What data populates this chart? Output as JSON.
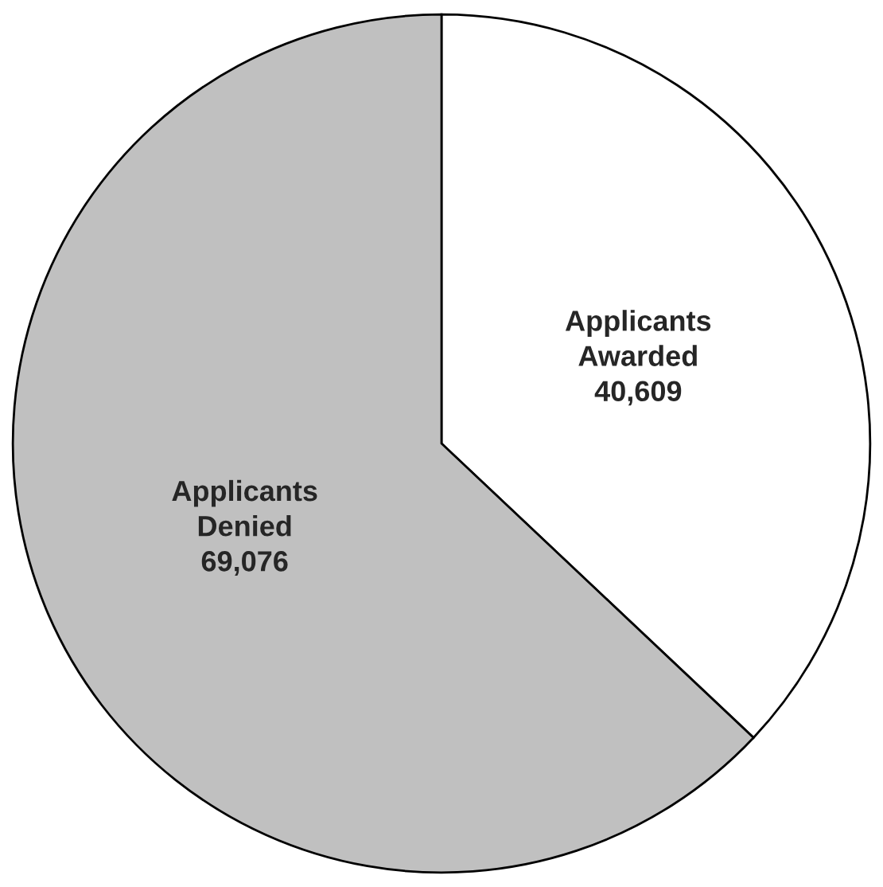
{
  "chart_data": {
    "type": "pie",
    "categories": [
      "Applicants\nAwarded",
      "Applicants\nDenied"
    ],
    "values": [
      40609,
      69076
    ],
    "value_labels": [
      "40,609",
      "69,076"
    ],
    "colors": [
      "#ffffff",
      "#c0c0c0"
    ]
  }
}
